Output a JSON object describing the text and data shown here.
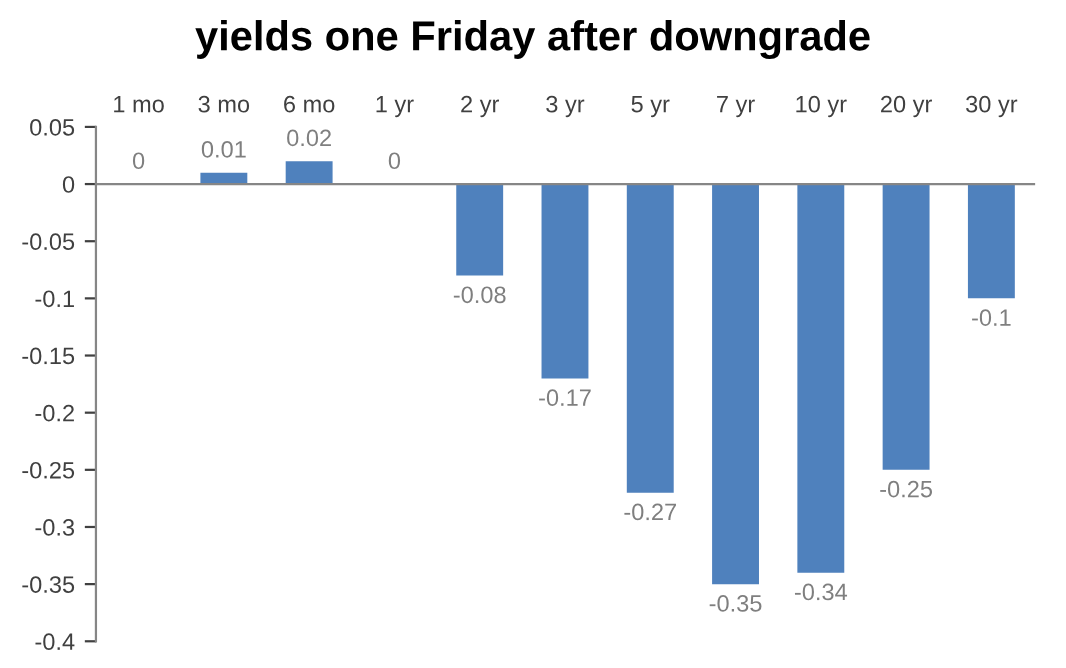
{
  "chart_data": {
    "type": "bar",
    "title": "yields one Friday after downgrade",
    "categories": [
      "1 mo",
      "3 mo",
      "6 mo",
      "1 yr",
      "2 yr",
      "3 yr",
      "5 yr",
      "7 yr",
      "10 yr",
      "20 yr",
      "30 yr"
    ],
    "values": [
      0,
      0.01,
      0.02,
      0,
      -0.08,
      -0.17,
      -0.27,
      -0.35,
      -0.34,
      -0.25,
      -0.1
    ],
    "color": "#4f81bd",
    "ylim": [
      -0.4,
      0.05
    ],
    "yticks": [
      -0.4,
      -0.35,
      -0.3,
      -0.25,
      -0.2,
      -0.15,
      -0.1,
      -0.05,
      0,
      0.05
    ],
    "data_labels": true
  }
}
